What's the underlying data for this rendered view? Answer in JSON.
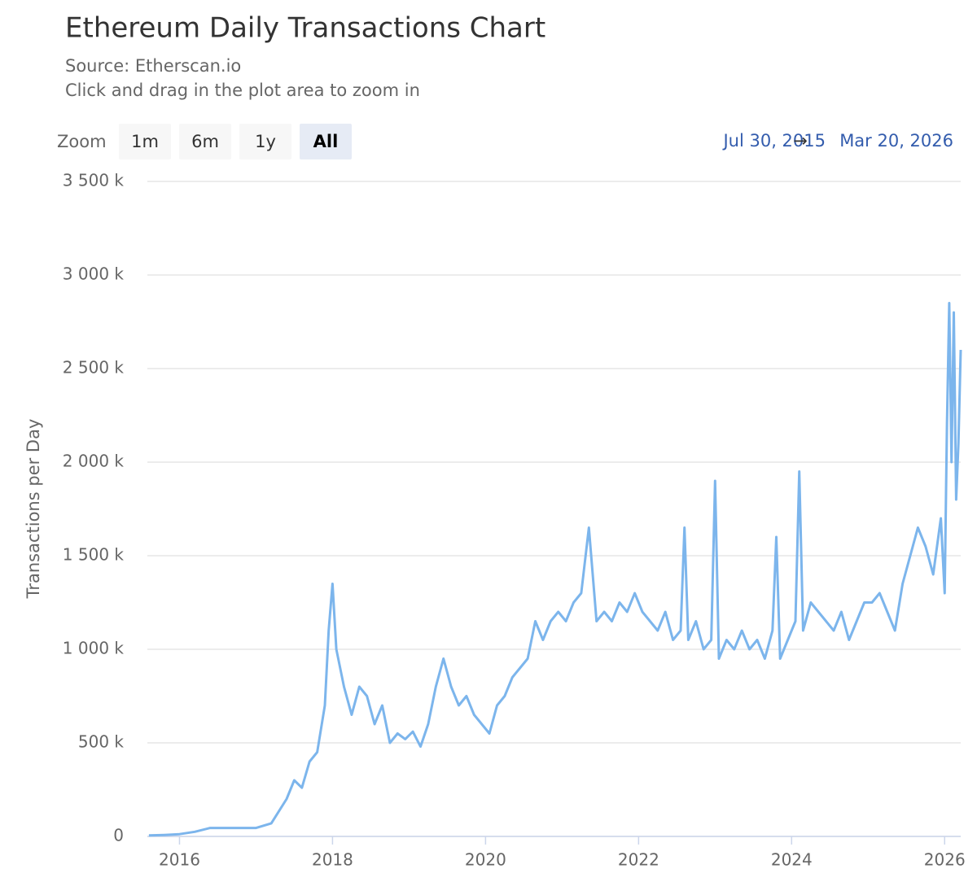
{
  "chart_data": {
    "type": "line",
    "title": "Ethereum Daily Transactions Chart",
    "subtitle": "Source: Etherscan.io",
    "note": "Click and drag in the plot area to zoom in",
    "ylabel": "Transactions per Day",
    "color": "#7cb5ec",
    "grid": true,
    "xlim": [
      2015.58,
      2026.21
    ],
    "xticks": [
      2016,
      2018,
      2020,
      2022,
      2024,
      2026
    ],
    "ylim": [
      0,
      3500000
    ],
    "yticks": [
      0,
      {
        "value": 500000,
        "label": "500 k"
      },
      {
        "value": 1000000,
        "label": "1 000 k"
      },
      {
        "value": 1500000,
        "label": "1 500 k"
      },
      {
        "value": 2000000,
        "label": "2 000 k"
      },
      {
        "value": 2500000,
        "label": "2 500 k"
      },
      {
        "value": 3000000,
        "label": "3 000 k"
      },
      {
        "value": 3500000,
        "label": "3 500 k"
      }
    ],
    "x": [
      2015.6,
      2015.8,
      2016.0,
      2016.2,
      2016.4,
      2016.6,
      2016.8,
      2017.0,
      2017.2,
      2017.4,
      2017.5,
      2017.6,
      2017.7,
      2017.8,
      2017.9,
      2017.95,
      2018.0,
      2018.05,
      2018.15,
      2018.25,
      2018.35,
      2018.45,
      2018.55,
      2018.65,
      2018.75,
      2018.85,
      2018.95,
      2019.05,
      2019.15,
      2019.25,
      2019.35,
      2019.45,
      2019.55,
      2019.65,
      2019.75,
      2019.85,
      2019.95,
      2020.05,
      2020.15,
      2020.25,
      2020.35,
      2020.45,
      2020.55,
      2020.65,
      2020.75,
      2020.85,
      2020.95,
      2021.05,
      2021.15,
      2021.25,
      2021.35,
      2021.45,
      2021.55,
      2021.65,
      2021.75,
      2021.85,
      2021.95,
      2022.05,
      2022.15,
      2022.25,
      2022.35,
      2022.45,
      2022.55,
      2022.6,
      2022.65,
      2022.75,
      2022.85,
      2022.95,
      2023.0,
      2023.05,
      2023.15,
      2023.25,
      2023.35,
      2023.45,
      2023.55,
      2023.65,
      2023.75,
      2023.8,
      2023.85,
      2023.95,
      2024.05,
      2024.1,
      2024.15,
      2024.25,
      2024.35,
      2024.45,
      2024.55,
      2024.65,
      2024.75,
      2024.85,
      2024.95,
      2025.05,
      2025.15,
      2025.25,
      2025.35,
      2025.45,
      2025.55,
      2025.65,
      2025.75,
      2025.85,
      2025.95,
      2026.0,
      2026.03,
      2026.06,
      2026.09,
      2026.12,
      2026.15,
      2026.18,
      2026.21
    ],
    "values": [
      5000,
      8000,
      12000,
      25000,
      45000,
      45000,
      45000,
      45000,
      70000,
      200000,
      300000,
      260000,
      400000,
      450000,
      700000,
      1100000,
      1350000,
      1000000,
      800000,
      650000,
      800000,
      750000,
      600000,
      700000,
      500000,
      550000,
      520000,
      560000,
      480000,
      600000,
      800000,
      950000,
      800000,
      700000,
      750000,
      650000,
      600000,
      550000,
      700000,
      750000,
      850000,
      900000,
      950000,
      1150000,
      1050000,
      1150000,
      1200000,
      1150000,
      1250000,
      1300000,
      1650000,
      1150000,
      1200000,
      1150000,
      1250000,
      1200000,
      1300000,
      1200000,
      1150000,
      1100000,
      1200000,
      1050000,
      1100000,
      1650000,
      1050000,
      1150000,
      1000000,
      1050000,
      1900000,
      950000,
      1050000,
      1000000,
      1100000,
      1000000,
      1050000,
      950000,
      1100000,
      1600000,
      950000,
      1050000,
      1150000,
      1950000,
      1100000,
      1250000,
      1200000,
      1150000,
      1100000,
      1200000,
      1050000,
      1150000,
      1250000,
      1250000,
      1300000,
      1200000,
      1100000,
      1350000,
      1500000,
      1650000,
      1550000,
      1400000,
      1700000,
      1300000,
      2200000,
      2850000,
      2000000,
      2800000,
      1800000,
      2100000,
      2600000
    ]
  },
  "zoom": {
    "label": "Zoom",
    "buttons": [
      "1m",
      "6m",
      "1y",
      "All"
    ],
    "selected": 3
  },
  "range": {
    "from": "Jul 30, 2015",
    "arrow": "→",
    "to": "Mar 20, 2026"
  }
}
